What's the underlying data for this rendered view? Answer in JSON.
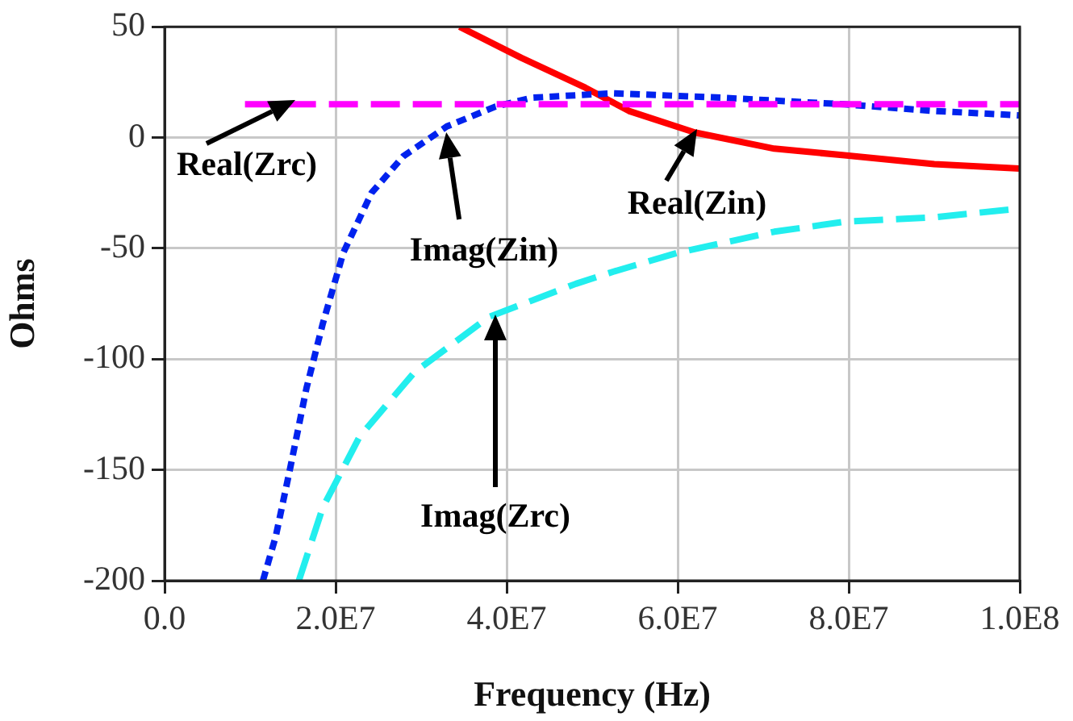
{
  "chart_data": {
    "type": "line",
    "xlabel": "Frequency (Hz)",
    "ylabel": "Ohms",
    "xlim": [
      0,
      100000000
    ],
    "ylim": [
      -200,
      50
    ],
    "xticks": [
      {
        "value": 0,
        "label": "0.0"
      },
      {
        "value": 20000000,
        "label": "2.0E7"
      },
      {
        "value": 40000000,
        "label": "4.0E7"
      },
      {
        "value": 60000000,
        "label": "6.0E7"
      },
      {
        "value": 80000000,
        "label": "8.0E7"
      },
      {
        "value": 100000000,
        "label": "1.0E8"
      }
    ],
    "yticks": [
      50,
      0,
      -50,
      -100,
      -150,
      -200
    ],
    "grid": true,
    "legend": false,
    "marker": "none",
    "series": [
      {
        "color": "#ff00ff",
        "line_style": "dashed",
        "x": [
          9400000,
          100000000
        ],
        "values": [
          15,
          15
        ]
      },
      {
        "color": "#0022ee",
        "line_style": "dotted",
        "x": [
          11500000,
          13000000,
          14700000,
          16600000,
          18500000,
          20900000,
          24200000,
          27900000,
          33000000,
          38700000,
          43000000,
          52500000,
          65000000,
          79500000,
          90000000,
          100000000
        ],
        "values": [
          -200,
          -180,
          -149,
          -113,
          -84,
          -52,
          -25,
          -8.5,
          5,
          14,
          18,
          20,
          18,
          15,
          12,
          10
        ]
      },
      {
        "color": "#ff0000",
        "line_style": "solid",
        "x": [
          34500000,
          41700000,
          49200000,
          54300000,
          62000000,
          71300000,
          79500000,
          90000000,
          100000000
        ],
        "values": [
          50,
          36,
          22.5,
          12,
          2.3,
          -5,
          -8,
          -12,
          -14
        ]
      },
      {
        "color": "#22eeee",
        "line_style": "dashed",
        "x": [
          15700000,
          18500000,
          22800000,
          29200000,
          37900000,
          48100000,
          52500000,
          60000000,
          71300000,
          79500000,
          90000000,
          100000000
        ],
        "values": [
          -200,
          -167,
          -135,
          -106,
          -81,
          -66,
          -60.5,
          -52,
          -42.5,
          -38,
          -36,
          -32
        ]
      }
    ],
    "annotations": [
      "Real(Zrc)",
      "Imag(Zin)",
      "Real(Zin)",
      "Imag(Zrc)"
    ]
  }
}
